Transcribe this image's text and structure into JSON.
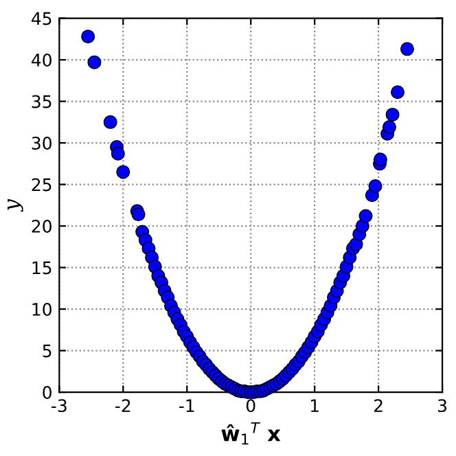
{
  "chart_data": {
    "type": "scatter",
    "xlabel": "ŵ$_{1}$$^{T}$ x",
    "ylabel": "y",
    "xlim": [
      -3,
      3
    ],
    "ylim": [
      0,
      45
    ],
    "xticks": [
      -3,
      -2,
      -1,
      0,
      1,
      2,
      3
    ],
    "yticks": [
      0,
      5,
      10,
      15,
      20,
      25,
      30,
      35,
      40,
      45
    ],
    "grid": true,
    "marker": "circle",
    "legend": false,
    "series": [
      {
        "color": "#0000ff",
        "x": [
          -2.55,
          -2.45,
          -2.2,
          -2.1,
          -2.08,
          -2.0,
          -1.78,
          -1.76,
          -1.7,
          -1.65,
          -1.6,
          -1.55,
          -1.5,
          -1.45,
          -1.4,
          -1.35,
          -1.3,
          -1.25,
          -1.2,
          -1.15,
          -1.1,
          -1.05,
          -1.0,
          -0.95,
          -0.9,
          -0.85,
          -0.8,
          -0.75,
          -0.7,
          -0.65,
          -0.6,
          -0.55,
          -0.5,
          -0.45,
          -0.4,
          -0.35,
          -0.3,
          -0.25,
          -0.2,
          -0.15,
          -0.1,
          -0.05,
          0,
          0.05,
          0.1,
          0.15,
          0.2,
          0.25,
          0.3,
          0.35,
          0.4,
          0.45,
          0.5,
          0.55,
          0.6,
          0.65,
          0.7,
          0.75,
          0.8,
          0.85,
          0.9,
          0.95,
          1.0,
          1.05,
          1.1,
          1.15,
          1.2,
          1.25,
          1.3,
          1.35,
          1.4,
          1.45,
          1.5,
          1.55,
          1.6,
          1.65,
          1.7,
          1.75,
          1.8,
          1.9,
          1.95,
          2.02,
          2.03,
          2.14,
          2.17,
          2.22,
          2.3,
          2.45
        ],
        "values": [
          42.8,
          39.7,
          32.5,
          29.5,
          28.7,
          26.5,
          21.8,
          21.4,
          19.3,
          18.3,
          17.3,
          16.2,
          15.1,
          14.0,
          13.2,
          12.2,
          11.4,
          10.4,
          9.6,
          8.8,
          8.1,
          7.3,
          6.7,
          6.0,
          5.4,
          4.8,
          4.3,
          3.7,
          3.3,
          2.8,
          2.4,
          2.0,
          1.6,
          1.3,
          1.0,
          0.8,
          0.6,
          0.4,
          0.2,
          0.1,
          0.1,
          0,
          0,
          0,
          0.1,
          0.1,
          0.2,
          0.4,
          0.6,
          0.8,
          1.0,
          1.3,
          1.6,
          2.0,
          2.4,
          2.8,
          3.3,
          3.7,
          4.3,
          4.8,
          5.4,
          6.0,
          6.7,
          7.3,
          8.1,
          8.8,
          9.6,
          10.4,
          11.4,
          12.2,
          13.2,
          14.0,
          15.1,
          16.2,
          17.3,
          17.8,
          19.0,
          20.0,
          21.2,
          23.7,
          24.8,
          27.5,
          28.0,
          31.1,
          31.9,
          33.4,
          36.1,
          41.3
        ]
      }
    ]
  }
}
